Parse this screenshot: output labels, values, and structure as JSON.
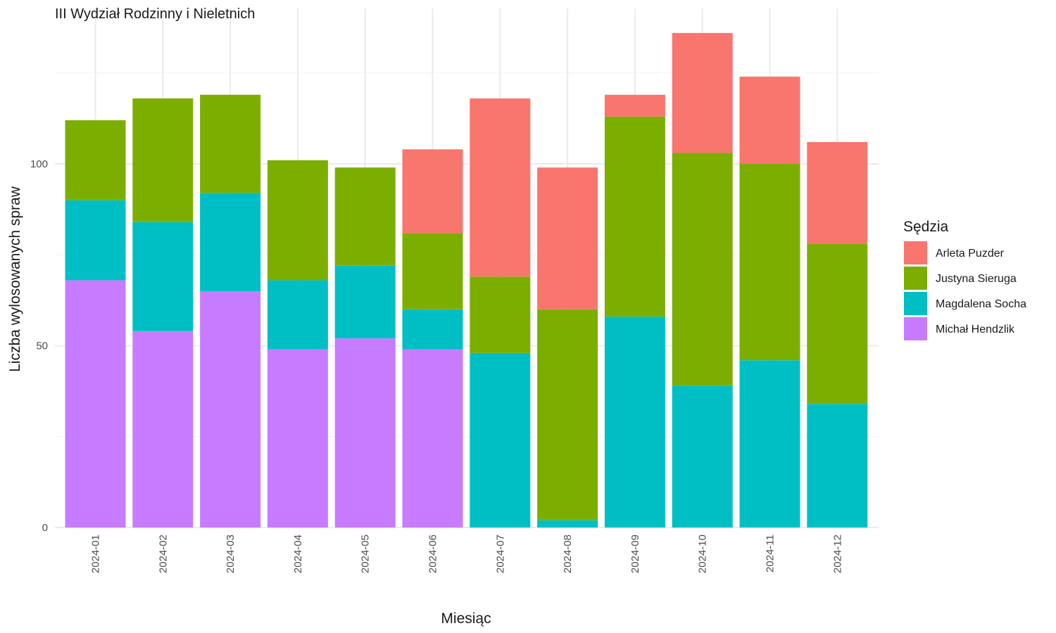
{
  "chart_data": {
    "type": "bar",
    "stacked": true,
    "title": "III Wydział Rodzinny i Nieletnich",
    "xlabel": "Miesiąc",
    "ylabel": "Liczba wylosowanych spraw",
    "ylim": [
      0,
      139
    ],
    "y_ticks": [
      0,
      50,
      100
    ],
    "grid": true,
    "legend": {
      "title": "Sędzia",
      "position": "right"
    },
    "categories": [
      "2024-01",
      "2024-02",
      "2024-03",
      "2024-04",
      "2024-05",
      "2024-06",
      "2024-07",
      "2024-08",
      "2024-09",
      "2024-10",
      "2024-11",
      "2024-12"
    ],
    "series": [
      {
        "name": "Michał Hendzlik",
        "color": "#C77CFF",
        "values": [
          68,
          54,
          65,
          49,
          52,
          49,
          0,
          0,
          0,
          0,
          0,
          0
        ]
      },
      {
        "name": "Magdalena Socha",
        "color": "#00BFC4",
        "values": [
          22,
          30,
          27,
          19,
          20,
          11,
          48,
          2,
          58,
          39,
          46,
          34
        ]
      },
      {
        "name": "Justyna Sieruga",
        "color": "#7CAE00",
        "values": [
          22,
          34,
          27,
          33,
          27,
          21,
          21,
          58,
          55,
          64,
          54,
          44
        ]
      },
      {
        "name": "Arleta Puzder",
        "color": "#F8766D",
        "values": [
          0,
          0,
          0,
          0,
          0,
          23,
          49,
          39,
          6,
          33,
          24,
          28
        ]
      }
    ],
    "legend_order": [
      "Arleta Puzder",
      "Justyna Sieruga",
      "Magdalena Socha",
      "Michał Hendzlik"
    ]
  }
}
